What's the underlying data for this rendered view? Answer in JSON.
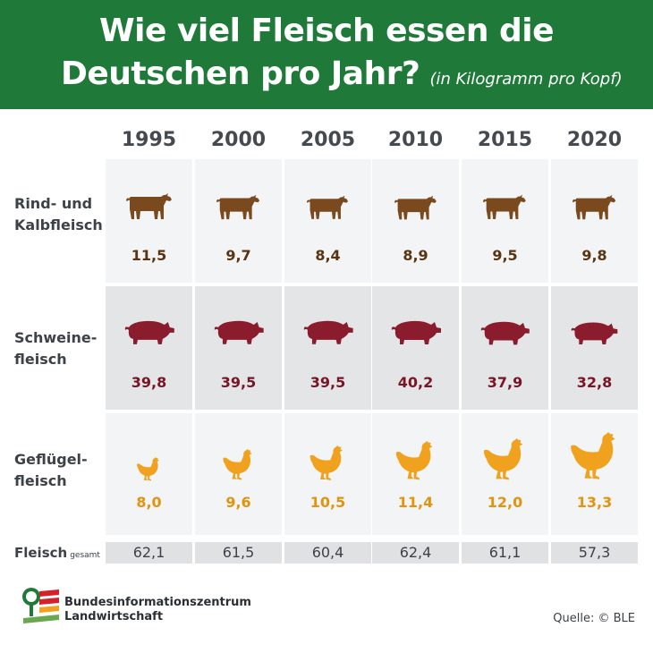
{
  "header": {
    "title_line1": "Wie viel Fleisch essen die",
    "title_line2": "Deutschen pro Jahr?",
    "unit": "(in Kilogramm pro Kopf)"
  },
  "colors": {
    "header_bg": "#1f7a3a",
    "cow": "#7a4a1e",
    "pig": "#8a1c2e",
    "chicken": "#f0a21e"
  },
  "icons": {
    "beef": "cow-icon",
    "pork": "pig-icon",
    "poultry": "chicken-icon",
    "logo": "ble-logo"
  },
  "chart_data": {
    "type": "table",
    "years": [
      "1995",
      "2000",
      "2005",
      "2010",
      "2015",
      "2020"
    ],
    "rows": [
      {
        "label": "Rind- und Kalbfleisch",
        "label_line1": "Rind- und",
        "label_line2": "Kalbfleisch",
        "values": [
          11.5,
          9.7,
          8.4,
          8.9,
          9.5,
          9.8
        ],
        "display": [
          "11,5",
          "9,7",
          "8,4",
          "8,9",
          "9,5",
          "9,8"
        ]
      },
      {
        "label": "Schweinefleisch",
        "label_line1": "Schweine-",
        "label_line2": "fleisch",
        "values": [
          39.8,
          39.5,
          39.5,
          40.2,
          37.9,
          32.8
        ],
        "display": [
          "39,8",
          "39,5",
          "39,5",
          "40,2",
          "37,9",
          "32,8"
        ]
      },
      {
        "label": "Geflügelfleisch",
        "label_line1": "Geflügel-",
        "label_line2": "fleisch",
        "values": [
          8.0,
          9.6,
          10.5,
          11.4,
          12.0,
          13.3
        ],
        "display": [
          "8,0",
          "9,6",
          "10,5",
          "11,4",
          "12,0",
          "13,3"
        ]
      }
    ],
    "total": {
      "label": "Fleisch",
      "label_sub": "gesamt",
      "values": [
        62.1,
        61.5,
        60.4,
        62.4,
        61.1,
        57.3
      ],
      "display": [
        "62,1",
        "61,5",
        "60,4",
        "62,4",
        "61,1",
        "57,3"
      ]
    }
  },
  "footer": {
    "org_line1": "Bundesinformationszentrum",
    "org_line2": "Landwirtschaft",
    "source": "Quelle: © BLE"
  }
}
